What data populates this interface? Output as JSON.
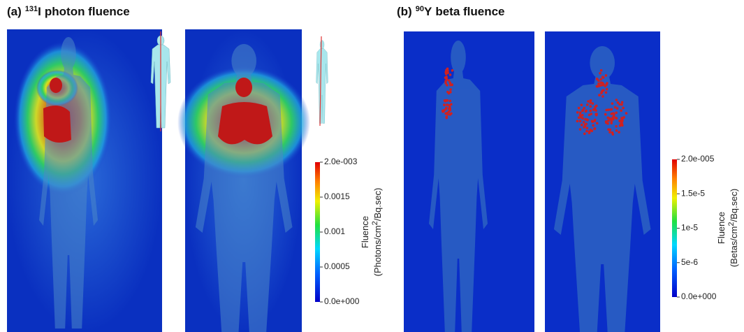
{
  "panels": [
    {
      "label": "(a)",
      "isotope_mass": "131",
      "isotope_symbol": "I",
      "title_rest": "photon fluence",
      "colorbar": {
        "ticks": [
          "2.0e-003",
          "0.0015",
          "0.001",
          "0.0005",
          "0.0e+000"
        ],
        "title": "Fluence",
        "unit_before": "(Photons/cm",
        "unit_exp": "2",
        "unit_after": "/Bq.sec)"
      }
    },
    {
      "label": "(b)",
      "isotope_mass": "90",
      "isotope_symbol": "Y",
      "title_rest": "beta fluence",
      "colorbar": {
        "ticks": [
          "2.0e-005",
          "1.5e-5",
          "1e-5",
          "5e-6",
          "0.0e+000"
        ],
        "title": "Fluence",
        "unit_before": "(Betas/cm",
        "unit_exp": "2",
        "unit_after": "/Bq.sec)"
      }
    }
  ]
}
